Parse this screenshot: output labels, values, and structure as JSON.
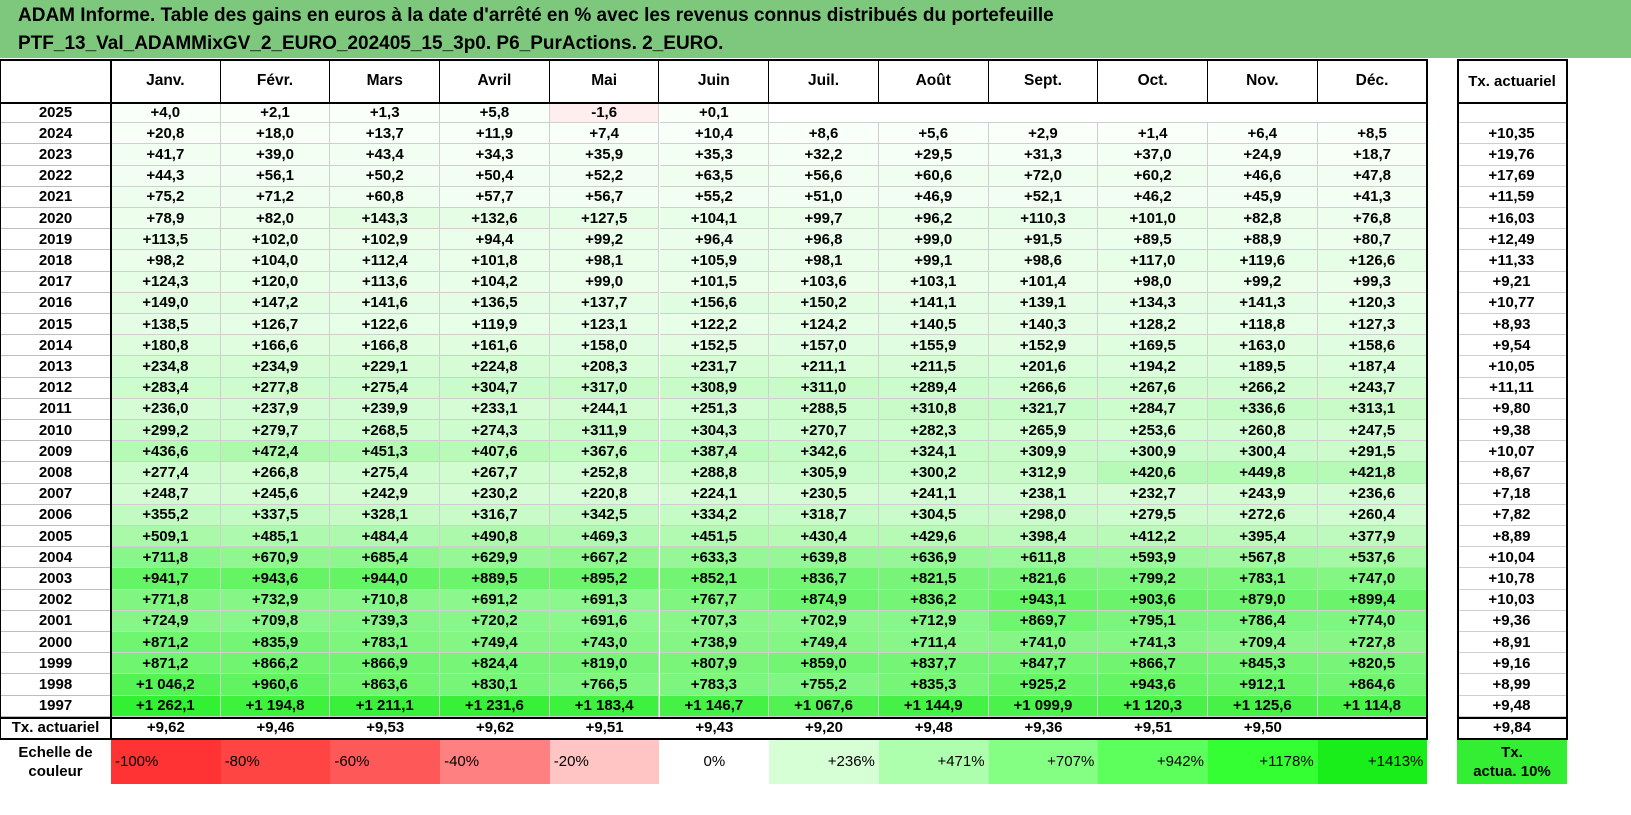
{
  "title": {
    "line1": "ADAM Informe. Table des gains en euros à la date d'arrêté en % avec les revenus connus distribués du portefeuille",
    "line2": "PTF_13_Val_ADAMMixGV_2_EURO_202405_15_3p0. P6_PurActions. 2_EURO."
  },
  "months": [
    "Janv.",
    "Févr.",
    "Mars",
    "Avril",
    "Mai",
    "Juin",
    "Juil.",
    "Août",
    "Sept.",
    "Oct.",
    "Nov.",
    "Déc."
  ],
  "rate_header": "Tx. actuariel",
  "rows": [
    {
      "year": "2025",
      "values": [
        "+4,0",
        "+2,1",
        "+1,3",
        "+5,8",
        "-1,6",
        "+0,1",
        "",
        "",
        "",
        "",
        "",
        ""
      ],
      "rate": ""
    },
    {
      "year": "2024",
      "values": [
        "+20,8",
        "+18,0",
        "+13,7",
        "+11,9",
        "+7,4",
        "+10,4",
        "+8,6",
        "+5,6",
        "+2,9",
        "+1,4",
        "+6,4",
        "+8,5"
      ],
      "rate": "+10,35"
    },
    {
      "year": "2023",
      "values": [
        "+41,7",
        "+39,0",
        "+43,4",
        "+34,3",
        "+35,9",
        "+35,3",
        "+32,2",
        "+29,5",
        "+31,3",
        "+37,0",
        "+24,9",
        "+18,7"
      ],
      "rate": "+19,76"
    },
    {
      "year": "2022",
      "values": [
        "+44,3",
        "+56,1",
        "+50,2",
        "+50,4",
        "+52,2",
        "+63,5",
        "+56,6",
        "+60,6",
        "+72,0",
        "+60,2",
        "+46,6",
        "+47,8"
      ],
      "rate": "+17,69"
    },
    {
      "year": "2021",
      "values": [
        "+75,2",
        "+71,2",
        "+60,8",
        "+57,7",
        "+56,7",
        "+55,2",
        "+51,0",
        "+46,9",
        "+52,1",
        "+46,2",
        "+45,9",
        "+41,3"
      ],
      "rate": "+11,59"
    },
    {
      "year": "2020",
      "values": [
        "+78,9",
        "+82,0",
        "+143,3",
        "+132,6",
        "+127,5",
        "+104,1",
        "+99,7",
        "+96,2",
        "+110,3",
        "+101,0",
        "+82,8",
        "+76,8"
      ],
      "rate": "+16,03"
    },
    {
      "year": "2019",
      "values": [
        "+113,5",
        "+102,0",
        "+102,9",
        "+94,4",
        "+99,2",
        "+96,4",
        "+96,8",
        "+99,0",
        "+91,5",
        "+89,5",
        "+88,9",
        "+80,7"
      ],
      "rate": "+12,49"
    },
    {
      "year": "2018",
      "values": [
        "+98,2",
        "+104,0",
        "+112,4",
        "+101,8",
        "+98,1",
        "+105,9",
        "+98,1",
        "+99,1",
        "+98,6",
        "+117,0",
        "+119,6",
        "+126,6"
      ],
      "rate": "+11,33"
    },
    {
      "year": "2017",
      "values": [
        "+124,3",
        "+120,0",
        "+113,6",
        "+104,2",
        "+99,0",
        "+101,5",
        "+103,6",
        "+103,1",
        "+101,4",
        "+98,0",
        "+99,2",
        "+99,3"
      ],
      "rate": "+9,21"
    },
    {
      "year": "2016",
      "values": [
        "+149,0",
        "+147,2",
        "+141,6",
        "+136,5",
        "+137,7",
        "+156,6",
        "+150,2",
        "+141,1",
        "+139,1",
        "+134,3",
        "+141,3",
        "+120,3"
      ],
      "rate": "+10,77"
    },
    {
      "year": "2015",
      "values": [
        "+138,5",
        "+126,7",
        "+122,6",
        "+119,9",
        "+123,1",
        "+122,2",
        "+124,2",
        "+140,5",
        "+140,3",
        "+128,2",
        "+118,8",
        "+127,3"
      ],
      "rate": "+8,93"
    },
    {
      "year": "2014",
      "values": [
        "+180,8",
        "+166,6",
        "+166,8",
        "+161,6",
        "+158,0",
        "+152,5",
        "+157,0",
        "+155,9",
        "+152,9",
        "+169,5",
        "+163,0",
        "+158,6"
      ],
      "rate": "+9,54"
    },
    {
      "year": "2013",
      "values": [
        "+234,8",
        "+234,9",
        "+229,1",
        "+224,8",
        "+208,3",
        "+231,7",
        "+211,1",
        "+211,5",
        "+201,6",
        "+194,2",
        "+189,5",
        "+187,4"
      ],
      "rate": "+10,05"
    },
    {
      "year": "2012",
      "values": [
        "+283,4",
        "+277,8",
        "+275,4",
        "+304,7",
        "+317,0",
        "+308,9",
        "+311,0",
        "+289,4",
        "+266,6",
        "+267,6",
        "+266,2",
        "+243,7"
      ],
      "rate": "+11,11"
    },
    {
      "year": "2011",
      "values": [
        "+236,0",
        "+237,9",
        "+239,9",
        "+233,1",
        "+244,1",
        "+251,3",
        "+288,5",
        "+310,8",
        "+321,7",
        "+284,7",
        "+336,6",
        "+313,1"
      ],
      "rate": "+9,80"
    },
    {
      "year": "2010",
      "values": [
        "+299,2",
        "+279,7",
        "+268,5",
        "+274,3",
        "+311,9",
        "+304,3",
        "+270,7",
        "+282,3",
        "+265,9",
        "+253,6",
        "+260,8",
        "+247,5"
      ],
      "rate": "+9,38"
    },
    {
      "year": "2009",
      "values": [
        "+436,6",
        "+472,4",
        "+451,3",
        "+407,6",
        "+367,6",
        "+387,4",
        "+342,6",
        "+324,1",
        "+309,9",
        "+300,9",
        "+300,4",
        "+291,5"
      ],
      "rate": "+10,07"
    },
    {
      "year": "2008",
      "values": [
        "+277,4",
        "+266,8",
        "+275,4",
        "+267,7",
        "+252,8",
        "+288,8",
        "+305,9",
        "+300,2",
        "+312,9",
        "+420,6",
        "+449,8",
        "+421,8"
      ],
      "rate": "+8,67"
    },
    {
      "year": "2007",
      "values": [
        "+248,7",
        "+245,6",
        "+242,9",
        "+230,2",
        "+220,8",
        "+224,1",
        "+230,5",
        "+241,1",
        "+238,1",
        "+232,7",
        "+243,9",
        "+236,6"
      ],
      "rate": "+7,18"
    },
    {
      "year": "2006",
      "values": [
        "+355,2",
        "+337,5",
        "+328,1",
        "+316,7",
        "+342,5",
        "+334,2",
        "+318,7",
        "+304,5",
        "+298,0",
        "+279,5",
        "+272,6",
        "+260,4"
      ],
      "rate": "+7,82"
    },
    {
      "year": "2005",
      "values": [
        "+509,1",
        "+485,1",
        "+484,4",
        "+490,8",
        "+469,3",
        "+451,5",
        "+430,4",
        "+429,6",
        "+398,4",
        "+412,2",
        "+395,4",
        "+377,9"
      ],
      "rate": "+8,89"
    },
    {
      "year": "2004",
      "values": [
        "+711,8",
        "+670,9",
        "+685,4",
        "+629,9",
        "+667,2",
        "+633,3",
        "+639,8",
        "+636,9",
        "+611,8",
        "+593,9",
        "+567,8",
        "+537,6"
      ],
      "rate": "+10,04"
    },
    {
      "year": "2003",
      "values": [
        "+941,7",
        "+943,6",
        "+944,0",
        "+889,5",
        "+895,2",
        "+852,1",
        "+836,7",
        "+821,5",
        "+821,6",
        "+799,2",
        "+783,1",
        "+747,0"
      ],
      "rate": "+10,78"
    },
    {
      "year": "2002",
      "values": [
        "+771,8",
        "+732,9",
        "+710,8",
        "+691,2",
        "+691,3",
        "+767,7",
        "+874,9",
        "+836,2",
        "+943,1",
        "+903,6",
        "+879,0",
        "+899,4"
      ],
      "rate": "+10,03"
    },
    {
      "year": "2001",
      "values": [
        "+724,9",
        "+709,8",
        "+739,3",
        "+720,2",
        "+691,6",
        "+707,3",
        "+702,9",
        "+712,9",
        "+869,7",
        "+795,1",
        "+786,4",
        "+774,0"
      ],
      "rate": "+9,36"
    },
    {
      "year": "2000",
      "values": [
        "+871,2",
        "+835,9",
        "+783,1",
        "+749,4",
        "+743,0",
        "+738,9",
        "+749,4",
        "+711,4",
        "+741,0",
        "+741,3",
        "+709,4",
        "+727,8"
      ],
      "rate": "+8,91"
    },
    {
      "year": "1999",
      "values": [
        "+871,2",
        "+866,2",
        "+866,9",
        "+824,4",
        "+819,0",
        "+807,9",
        "+859,0",
        "+837,7",
        "+847,7",
        "+866,7",
        "+845,3",
        "+820,5"
      ],
      "rate": "+9,16"
    },
    {
      "year": "1998",
      "values": [
        "+1 046,2",
        "+960,6",
        "+863,6",
        "+830,1",
        "+766,5",
        "+783,3",
        "+755,2",
        "+835,3",
        "+925,2",
        "+943,6",
        "+912,1",
        "+864,6"
      ],
      "rate": "+8,99"
    },
    {
      "year": "1997",
      "values": [
        "+1 262,1",
        "+1 194,8",
        "+1 211,1",
        "+1 231,6",
        "+1 183,4",
        "+1 146,7",
        "+1 067,6",
        "+1 144,9",
        "+1 099,9",
        "+1 120,3",
        "+1 125,6",
        "+1 114,8"
      ],
      "rate": "+9,48"
    }
  ],
  "footer": {
    "label": "Tx. actuariel",
    "values": [
      "+9,62",
      "+9,46",
      "+9,53",
      "+9,62",
      "+9,51",
      "+9,43",
      "+9,20",
      "+9,48",
      "+9,36",
      "+9,51",
      "+9,50",
      ""
    ],
    "rate": "+9,84"
  },
  "scale": {
    "label_line1": "Echelle de",
    "label_line2": "couleur",
    "steps": [
      {
        "text": "-100%",
        "bg": "#ff3333",
        "align": "left"
      },
      {
        "text": "-80%",
        "bg": "#ff4444",
        "align": "left"
      },
      {
        "text": "-60%",
        "bg": "#ff5858",
        "align": "left"
      },
      {
        "text": "-40%",
        "bg": "#ff8080",
        "align": "left"
      },
      {
        "text": "-20%",
        "bg": "#ffc4c4",
        "align": "left"
      },
      {
        "text": "0%",
        "bg": "#ffffff",
        "align": "center"
      },
      {
        "text": "+236%",
        "bg": "#d6ffd6",
        "align": "right"
      },
      {
        "text": "+471%",
        "bg": "#adffad",
        "align": "right"
      },
      {
        "text": "+707%",
        "bg": "#84ff84",
        "align": "right"
      },
      {
        "text": "+942%",
        "bg": "#5cff5c",
        "align": "right"
      },
      {
        "text": "+1178%",
        "bg": "#33ff33",
        "align": "right"
      },
      {
        "text": "+1413%",
        "bg": "#1aee1a",
        "align": "right"
      }
    ],
    "rate_line1": "Tx.",
    "rate_line2": "actua. 10%",
    "rate_bg": "#33ee33"
  },
  "colors": {
    "title_band": "#7ec87e",
    "negative": "#ff3333",
    "positive_max": "#1aee1a",
    "neutral": "#ffffff"
  }
}
